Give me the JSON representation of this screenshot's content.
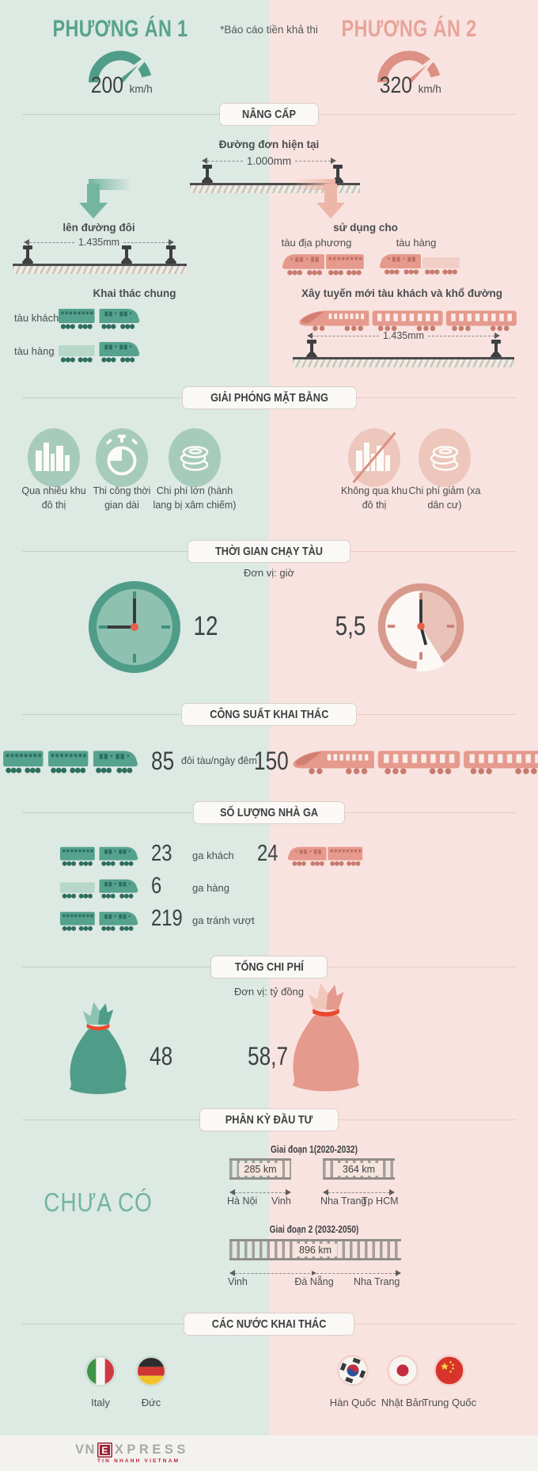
{
  "header": {
    "note": "*Báo cáo tiền khả thi",
    "option1": {
      "title": "PHƯƠNG ÁN 1",
      "speed": "200",
      "unit": "km/h"
    },
    "option2": {
      "title": "PHƯƠNG ÁN 2",
      "speed": "320",
      "unit": "km/h"
    }
  },
  "upgrade": {
    "title": "NÂNG CẤP",
    "current_label": "Đường đơn hiện tại",
    "current_gauge": "1.000mm",
    "left": {
      "label": "lên đường đôi",
      "gauge": "1.435mm",
      "shared_title": "Khai thác chung",
      "row1": "tàu khách",
      "row2": "tàu hàng"
    },
    "right": {
      "label": "sử dụng cho",
      "use1": "tàu địa phương",
      "use2": "tàu hàng",
      "new_line": "Xây tuyến mới tàu khách và khổ đường",
      "gauge": "1.435mm"
    }
  },
  "clearance": {
    "title": "GIẢI PHÓNG MẶT BẰNG",
    "items_left": [
      {
        "icon": "city-icon",
        "label": "Qua nhiều khu đô thị"
      },
      {
        "icon": "stopwatch-icon",
        "label": "Thi công thời gian dài"
      },
      {
        "icon": "coins-icon",
        "label": "Chi phí lớn (hành lang bị xâm chiếm)"
      }
    ],
    "items_right": [
      {
        "icon": "city-slash-icon",
        "label": "Không qua khu đô thị"
      },
      {
        "icon": "coins-icon",
        "label": "Chi phí giảm (xa dân cư)"
      }
    ]
  },
  "time": {
    "title": "THỜI GIAN CHẠY TÀU",
    "unit": "Đơn vị: giờ",
    "left_value": "12",
    "right_value": "5,5"
  },
  "capacity": {
    "title": "CÔNG SUẤT KHAI THÁC",
    "left_value": "85",
    "unit": "đôi tàu/ngày đêm",
    "right_value": "150"
  },
  "stations": {
    "title": "SỐ LƯỢNG NHÀ GA",
    "rows": [
      {
        "value": "23",
        "label": "ga khách",
        "right_value": "24"
      },
      {
        "value": "6",
        "label": "ga hàng"
      },
      {
        "value": "219",
        "label": "ga tránh vượt"
      }
    ]
  },
  "cost": {
    "title": "TỔNG CHI PHÍ",
    "unit": "Đơn vị: tỷ đồng",
    "left_value": "48",
    "right_value": "58,7"
  },
  "phases": {
    "title": "PHÂN KỲ ĐẦU TƯ",
    "left_empty": "CHƯA CÓ",
    "phase1": {
      "label": "Giai đoạn 1(2020-2032)",
      "seg1": {
        "km": "285 km",
        "from": "Hà Nội",
        "to": "Vinh"
      },
      "seg2": {
        "km": "364 km",
        "from": "Nha Trang",
        "to": "Tp HCM"
      }
    },
    "phase2": {
      "label": "Giai đoạn 2 (2032-2050)",
      "seg": {
        "km": "896 km",
        "from": "Vinh",
        "mid": "Đà Nẵng",
        "to": "Nha Trang"
      }
    }
  },
  "countries": {
    "title": "CÁC NƯỚC KHAI THÁC",
    "left": [
      {
        "flag": "italy-flag",
        "label": "Italy"
      },
      {
        "flag": "germany-flag",
        "label": "Đức"
      }
    ],
    "right": [
      {
        "flag": "south-korea-flag",
        "label": "Hàn Quốc"
      },
      {
        "flag": "japan-flag",
        "label": "Nhật Bản"
      },
      {
        "flag": "china-flag",
        "label": "Trung Quốc"
      }
    ]
  },
  "footer": {
    "logo_vn": "VN",
    "logo_e": "E",
    "logo_xpress": "XPRESS",
    "tagline": "TIN NHANH VIETNAM"
  },
  "colors": {
    "teal": "#55a28e",
    "pink": "#e59a8d",
    "bg_left": "#dde9e3",
    "bg_right": "#f9e3e0",
    "red_accent": "#e8492d",
    "dark_text": "#3e4143"
  }
}
